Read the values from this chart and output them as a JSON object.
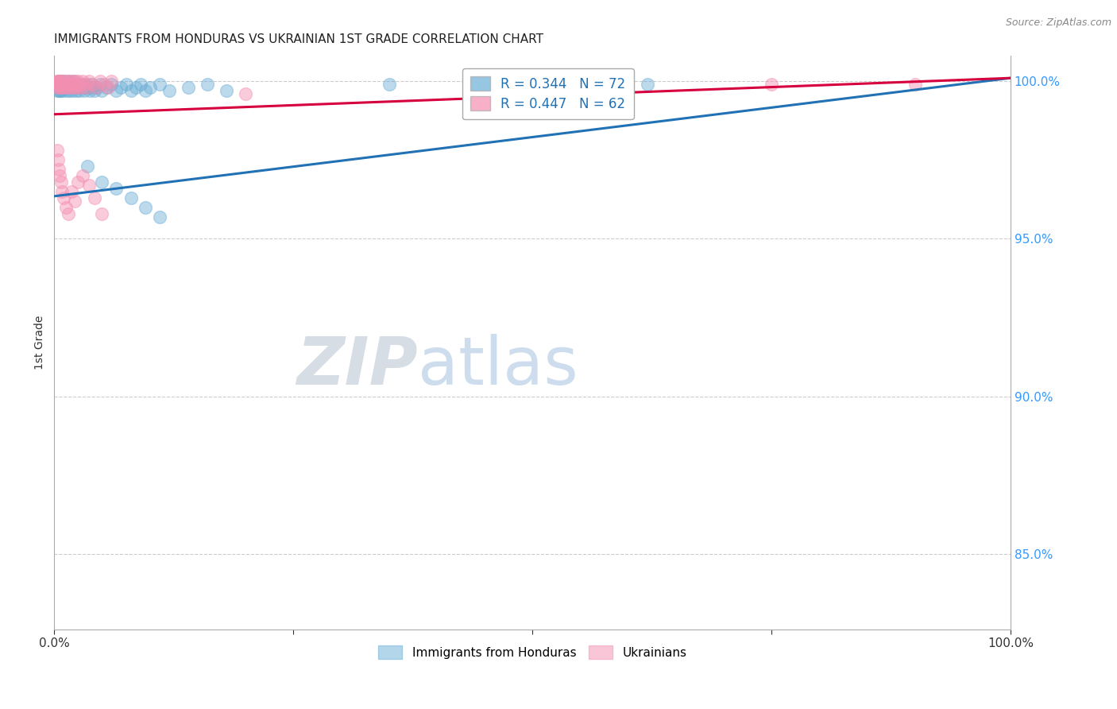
{
  "title": "IMMIGRANTS FROM HONDURAS VS UKRAINIAN 1ST GRADE CORRELATION CHART",
  "source": "Source: ZipAtlas.com",
  "ylabel": "1st Grade",
  "xmin": 0.0,
  "xmax": 1.0,
  "ymin": 0.826,
  "ymax": 1.008,
  "blue_R": 0.344,
  "blue_N": 72,
  "pink_R": 0.447,
  "pink_N": 62,
  "blue_color": "#6baed6",
  "pink_color": "#f48fb1",
  "blue_line_color": "#2171b5",
  "pink_line_color": "#d6003e",
  "legend1": "Immigrants from Honduras",
  "legend2": "Ukrainians",
  "watermark_zip": "ZIP",
  "watermark_atlas": "atlas",
  "figsize": [
    14.06,
    8.92
  ],
  "dpi": 100,
  "blue_scatter_x": [
    0.002,
    0.003,
    0.003,
    0.004,
    0.004,
    0.005,
    0.005,
    0.006,
    0.006,
    0.006,
    0.007,
    0.007,
    0.008,
    0.008,
    0.009,
    0.009,
    0.01,
    0.01,
    0.011,
    0.012,
    0.013,
    0.014,
    0.015,
    0.015,
    0.016,
    0.017,
    0.018,
    0.019,
    0.02,
    0.021,
    0.022,
    0.023,
    0.024,
    0.025,
    0.026,
    0.027,
    0.028,
    0.03,
    0.031,
    0.033,
    0.035,
    0.037,
    0.038,
    0.04,
    0.042,
    0.045,
    0.048,
    0.05,
    0.055,
    0.06,
    0.065,
    0.07,
    0.075,
    0.08,
    0.085,
    0.09,
    0.095,
    0.1,
    0.11,
    0.12,
    0.14,
    0.16,
    0.18,
    0.035,
    0.05,
    0.065,
    0.08,
    0.095,
    0.11,
    0.35,
    0.6,
    0.62
  ],
  "blue_scatter_y": [
    0.998,
    0.997,
    0.999,
    0.998,
    1.0,
    0.997,
    0.999,
    0.998,
    0.997,
    1.0,
    0.999,
    0.997,
    0.998,
    1.0,
    0.997,
    0.999,
    0.998,
    1.0,
    0.999,
    0.998,
    0.997,
    0.999,
    0.998,
    1.0,
    0.997,
    0.999,
    0.998,
    0.997,
    1.0,
    0.998,
    0.999,
    0.997,
    0.998,
    0.999,
    0.997,
    0.998,
    0.999,
    0.998,
    0.997,
    0.999,
    0.998,
    0.997,
    0.999,
    0.998,
    0.997,
    0.998,
    0.999,
    0.997,
    0.998,
    0.999,
    0.997,
    0.998,
    0.999,
    0.997,
    0.998,
    0.999,
    0.997,
    0.998,
    0.999,
    0.997,
    0.998,
    0.999,
    0.997,
    0.973,
    0.968,
    0.966,
    0.963,
    0.96,
    0.957,
    0.999,
    0.999,
    0.999
  ],
  "pink_scatter_x": [
    0.002,
    0.003,
    0.003,
    0.004,
    0.004,
    0.005,
    0.005,
    0.006,
    0.006,
    0.007,
    0.007,
    0.008,
    0.008,
    0.009,
    0.01,
    0.011,
    0.012,
    0.013,
    0.014,
    0.015,
    0.016,
    0.017,
    0.018,
    0.019,
    0.02,
    0.021,
    0.022,
    0.023,
    0.024,
    0.025,
    0.026,
    0.028,
    0.03,
    0.032,
    0.034,
    0.036,
    0.04,
    0.044,
    0.048,
    0.052,
    0.056,
    0.06,
    0.003,
    0.004,
    0.005,
    0.006,
    0.007,
    0.008,
    0.01,
    0.012,
    0.015,
    0.018,
    0.021,
    0.025,
    0.03,
    0.036,
    0.042,
    0.05,
    0.2,
    0.6,
    0.75,
    0.9
  ],
  "pink_scatter_y": [
    0.999,
    1.0,
    0.998,
    1.0,
    0.999,
    0.998,
    1.0,
    0.999,
    1.0,
    0.999,
    0.998,
    1.0,
    0.999,
    0.998,
    1.0,
    0.999,
    0.998,
    1.0,
    0.999,
    0.998,
    1.0,
    0.999,
    0.998,
    1.0,
    0.999,
    0.998,
    1.0,
    0.999,
    0.998,
    1.0,
    0.999,
    0.998,
    1.0,
    0.999,
    0.998,
    1.0,
    0.999,
    0.998,
    1.0,
    0.999,
    0.998,
    1.0,
    0.978,
    0.975,
    0.972,
    0.97,
    0.968,
    0.965,
    0.963,
    0.96,
    0.958,
    0.965,
    0.962,
    0.968,
    0.97,
    0.967,
    0.963,
    0.958,
    0.996,
    0.999,
    0.999,
    0.999
  ],
  "blue_line_x0": 0.0,
  "blue_line_y0": 0.9635,
  "blue_line_x1": 1.0,
  "blue_line_y1": 1.001,
  "pink_line_x0": 0.0,
  "pink_line_y0": 0.9895,
  "pink_line_x1": 1.0,
  "pink_line_y1": 1.001
}
